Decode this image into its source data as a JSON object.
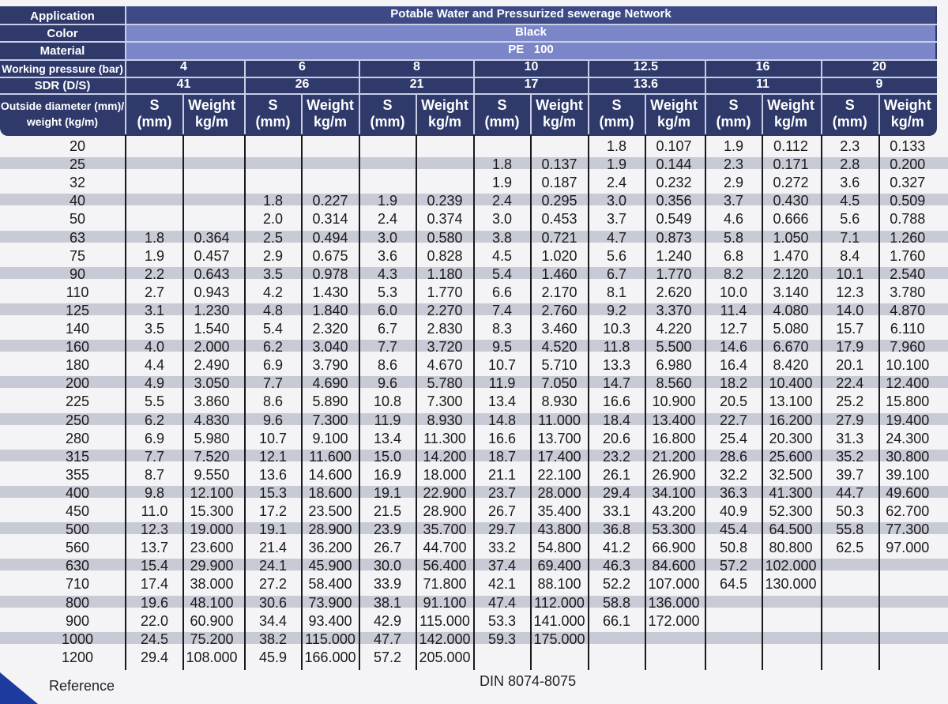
{
  "labels": {
    "application": "Application",
    "color": "Color",
    "material": "Material",
    "working_pressure": "Working pressure (bar)",
    "sdr": "SDR (D/S)",
    "od_line1": "Outside diameter (mm)/",
    "od_line2": "weight (kg/m)"
  },
  "header": {
    "application": "Potable Water and  Pressurized sewerage Network",
    "color": "Black",
    "material": "PE   100"
  },
  "sub_labels": {
    "s_top": "S",
    "s_bottom": "(mm)",
    "w_top": "Weight",
    "w_bottom": "kg/m"
  },
  "pressure_groups": [
    {
      "pressure": "4",
      "sdr": "41"
    },
    {
      "pressure": "6",
      "sdr": "26"
    },
    {
      "pressure": "8",
      "sdr": "21"
    },
    {
      "pressure": "10",
      "sdr": "17"
    },
    {
      "pressure": "12.5",
      "sdr": "13.6"
    },
    {
      "pressure": "16",
      "sdr": "11"
    },
    {
      "pressure": "20",
      "sdr": "9"
    }
  ],
  "rows": [
    {
      "od": "20",
      "v": [
        [
          "",
          ""
        ],
        [
          "",
          ""
        ],
        [
          "",
          ""
        ],
        [
          "",
          ""
        ],
        [
          "1.8",
          "0.107"
        ],
        [
          "1.9",
          "0.112"
        ],
        [
          "2.3",
          "0.133"
        ]
      ]
    },
    {
      "od": "25",
      "v": [
        [
          "",
          ""
        ],
        [
          "",
          ""
        ],
        [
          "",
          ""
        ],
        [
          "1.8",
          "0.137"
        ],
        [
          "1.9",
          "0.144"
        ],
        [
          "2.3",
          "0.171"
        ],
        [
          "2.8",
          "0.200"
        ]
      ]
    },
    {
      "od": "32",
      "v": [
        [
          "",
          ""
        ],
        [
          "",
          ""
        ],
        [
          "",
          ""
        ],
        [
          "1.9",
          "0.187"
        ],
        [
          "2.4",
          "0.232"
        ],
        [
          "2.9",
          "0.272"
        ],
        [
          "3.6",
          "0.327"
        ]
      ]
    },
    {
      "od": "40",
      "v": [
        [
          "",
          ""
        ],
        [
          "1.8",
          "0.227"
        ],
        [
          "1.9",
          "0.239"
        ],
        [
          "2.4",
          "0.295"
        ],
        [
          "3.0",
          "0.356"
        ],
        [
          "3.7",
          "0.430"
        ],
        [
          "4.5",
          "0.509"
        ]
      ]
    },
    {
      "od": "50",
      "v": [
        [
          "",
          ""
        ],
        [
          "2.0",
          "0.314"
        ],
        [
          "2.4",
          "0.374"
        ],
        [
          "3.0",
          "0.453"
        ],
        [
          "3.7",
          "0.549"
        ],
        [
          "4.6",
          "0.666"
        ],
        [
          "5.6",
          "0.788"
        ]
      ]
    },
    {
      "od": "63",
      "v": [
        [
          "1.8",
          "0.364"
        ],
        [
          "2.5",
          "0.494"
        ],
        [
          "3.0",
          "0.580"
        ],
        [
          "3.8",
          "0.721"
        ],
        [
          "4.7",
          "0.873"
        ],
        [
          "5.8",
          "1.050"
        ],
        [
          "7.1",
          "1.260"
        ]
      ]
    },
    {
      "od": "75",
      "v": [
        [
          "1.9",
          "0.457"
        ],
        [
          "2.9",
          "0.675"
        ],
        [
          "3.6",
          "0.828"
        ],
        [
          "4.5",
          "1.020"
        ],
        [
          "5.6",
          "1.240"
        ],
        [
          "6.8",
          "1.470"
        ],
        [
          "8.4",
          "1.760"
        ]
      ]
    },
    {
      "od": "90",
      "v": [
        [
          "2.2",
          "0.643"
        ],
        [
          "3.5",
          "0.978"
        ],
        [
          "4.3",
          "1.180"
        ],
        [
          "5.4",
          "1.460"
        ],
        [
          "6.7",
          "1.770"
        ],
        [
          "8.2",
          "2.120"
        ],
        [
          "10.1",
          "2.540"
        ]
      ]
    },
    {
      "od": "110",
      "v": [
        [
          "2.7",
          "0.943"
        ],
        [
          "4.2",
          "1.430"
        ],
        [
          "5.3",
          "1.770"
        ],
        [
          "6.6",
          "2.170"
        ],
        [
          "8.1",
          "2.620"
        ],
        [
          "10.0",
          "3.140"
        ],
        [
          "12.3",
          "3.780"
        ]
      ]
    },
    {
      "od": "125",
      "v": [
        [
          "3.1",
          "1.230"
        ],
        [
          "4.8",
          "1.840"
        ],
        [
          "6.0",
          "2.270"
        ],
        [
          "7.4",
          "2.760"
        ],
        [
          "9.2",
          "3.370"
        ],
        [
          "11.4",
          "4.080"
        ],
        [
          "14.0",
          "4.870"
        ]
      ]
    },
    {
      "od": "140",
      "v": [
        [
          "3.5",
          "1.540"
        ],
        [
          "5.4",
          "2.320"
        ],
        [
          "6.7",
          "2.830"
        ],
        [
          "8.3",
          "3.460"
        ],
        [
          "10.3",
          "4.220"
        ],
        [
          "12.7",
          "5.080"
        ],
        [
          "15.7",
          "6.110"
        ]
      ]
    },
    {
      "od": "160",
      "v": [
        [
          "4.0",
          "2.000"
        ],
        [
          "6.2",
          "3.040"
        ],
        [
          "7.7",
          "3.720"
        ],
        [
          "9.5",
          "4.520"
        ],
        [
          "11.8",
          "5.500"
        ],
        [
          "14.6",
          "6.670"
        ],
        [
          "17.9",
          "7.960"
        ]
      ]
    },
    {
      "od": "180",
      "v": [
        [
          "4.4",
          "2.490"
        ],
        [
          "6.9",
          "3.790"
        ],
        [
          "8.6",
          "4.670"
        ],
        [
          "10.7",
          "5.710"
        ],
        [
          "13.3",
          "6.980"
        ],
        [
          "16.4",
          "8.420"
        ],
        [
          "20.1",
          "10.100"
        ]
      ]
    },
    {
      "od": "200",
      "v": [
        [
          "4.9",
          "3.050"
        ],
        [
          "7.7",
          "4.690"
        ],
        [
          "9.6",
          "5.780"
        ],
        [
          "11.9",
          "7.050"
        ],
        [
          "14.7",
          "8.560"
        ],
        [
          "18.2",
          "10.400"
        ],
        [
          "22.4",
          "12.400"
        ]
      ]
    },
    {
      "od": "225",
      "v": [
        [
          "5.5",
          "3.860"
        ],
        [
          "8.6",
          "5.890"
        ],
        [
          "10.8",
          "7.300"
        ],
        [
          "13.4",
          "8.930"
        ],
        [
          "16.6",
          "10.900"
        ],
        [
          "20.5",
          "13.100"
        ],
        [
          "25.2",
          "15.800"
        ]
      ]
    },
    {
      "od": "250",
      "v": [
        [
          "6.2",
          "4.830"
        ],
        [
          "9.6",
          "7.300"
        ],
        [
          "11.9",
          "8.930"
        ],
        [
          "14.8",
          "11.000"
        ],
        [
          "18.4",
          "13.400"
        ],
        [
          "22.7",
          "16.200"
        ],
        [
          "27.9",
          "19.400"
        ]
      ]
    },
    {
      "od": "280",
      "v": [
        [
          "6.9",
          "5.980"
        ],
        [
          "10.7",
          "9.100"
        ],
        [
          "13.4",
          "11.300"
        ],
        [
          "16.6",
          "13.700"
        ],
        [
          "20.6",
          "16.800"
        ],
        [
          "25.4",
          "20.300"
        ],
        [
          "31.3",
          "24.300"
        ]
      ]
    },
    {
      "od": "315",
      "v": [
        [
          "7.7",
          "7.520"
        ],
        [
          "12.1",
          "11.600"
        ],
        [
          "15.0",
          "14.200"
        ],
        [
          "18.7",
          "17.400"
        ],
        [
          "23.2",
          "21.200"
        ],
        [
          "28.6",
          "25.600"
        ],
        [
          "35.2",
          "30.800"
        ]
      ]
    },
    {
      "od": "355",
      "v": [
        [
          "8.7",
          "9.550"
        ],
        [
          "13.6",
          "14.600"
        ],
        [
          "16.9",
          "18.000"
        ],
        [
          "21.1",
          "22.100"
        ],
        [
          "26.1",
          "26.900"
        ],
        [
          "32.2",
          "32.500"
        ],
        [
          "39.7",
          "39.100"
        ]
      ]
    },
    {
      "od": "400",
      "v": [
        [
          "9.8",
          "12.100"
        ],
        [
          "15.3",
          "18.600"
        ],
        [
          "19.1",
          "22.900"
        ],
        [
          "23.7",
          "28.000"
        ],
        [
          "29.4",
          "34.100"
        ],
        [
          "36.3",
          "41.300"
        ],
        [
          "44.7",
          "49.600"
        ]
      ]
    },
    {
      "od": "450",
      "v": [
        [
          "11.0",
          "15.300"
        ],
        [
          "17.2",
          "23.500"
        ],
        [
          "21.5",
          "28.900"
        ],
        [
          "26.7",
          "35.400"
        ],
        [
          "33.1",
          "43.200"
        ],
        [
          "40.9",
          "52.300"
        ],
        [
          "50.3",
          "62.700"
        ]
      ]
    },
    {
      "od": "500",
      "v": [
        [
          "12.3",
          "19.000"
        ],
        [
          "19.1",
          "28.900"
        ],
        [
          "23.9",
          "35.700"
        ],
        [
          "29.7",
          "43.800"
        ],
        [
          "36.8",
          "53.300"
        ],
        [
          "45.4",
          "64.500"
        ],
        [
          "55.8",
          "77.300"
        ]
      ]
    },
    {
      "od": "560",
      "v": [
        [
          "13.7",
          "23.600"
        ],
        [
          "21.4",
          "36.200"
        ],
        [
          "26.7",
          "44.700"
        ],
        [
          "33.2",
          "54.800"
        ],
        [
          "41.2",
          "66.900"
        ],
        [
          "50.8",
          "80.800"
        ],
        [
          "62.5",
          "97.000"
        ]
      ]
    },
    {
      "od": "630",
      "v": [
        [
          "15.4",
          "29.900"
        ],
        [
          "24.1",
          "45.900"
        ],
        [
          "30.0",
          "56.400"
        ],
        [
          "37.4",
          "69.400"
        ],
        [
          "46.3",
          "84.600"
        ],
        [
          "57.2",
          "102.000"
        ],
        [
          "",
          ""
        ]
      ]
    },
    {
      "od": "710",
      "v": [
        [
          "17.4",
          "38.000"
        ],
        [
          "27.2",
          "58.400"
        ],
        [
          "33.9",
          "71.800"
        ],
        [
          "42.1",
          "88.100"
        ],
        [
          "52.2",
          "107.000"
        ],
        [
          "64.5",
          "130.000"
        ],
        [
          "",
          ""
        ]
      ]
    },
    {
      "od": "800",
      "v": [
        [
          "19.6",
          "48.100"
        ],
        [
          "30.6",
          "73.900"
        ],
        [
          "38.1",
          "91.100"
        ],
        [
          "47.4",
          "112.000"
        ],
        [
          "58.8",
          "136.000"
        ],
        [
          "",
          ""
        ],
        [
          "",
          ""
        ]
      ]
    },
    {
      "od": "900",
      "v": [
        [
          "22.0",
          "60.900"
        ],
        [
          "34.4",
          "93.400"
        ],
        [
          "42.9",
          "115.000"
        ],
        [
          "53.3",
          "141.000"
        ],
        [
          "66.1",
          "172.000"
        ],
        [
          "",
          ""
        ],
        [
          "",
          ""
        ]
      ]
    },
    {
      "od": "1000",
      "v": [
        [
          "24.5",
          "75.200"
        ],
        [
          "38.2",
          "115.000"
        ],
        [
          "47.7",
          "142.000"
        ],
        [
          "59.3",
          "175.000"
        ],
        [
          "",
          ""
        ],
        [
          "",
          ""
        ],
        [
          "",
          ""
        ]
      ]
    },
    {
      "od": "1200",
      "v": [
        [
          "29.4",
          "108.000"
        ],
        [
          "45.9",
          "166.000"
        ],
        [
          "57.2",
          "205.000"
        ],
        [
          "",
          ""
        ],
        [
          "",
          ""
        ],
        [
          "",
          ""
        ],
        [
          "",
          ""
        ]
      ]
    }
  ],
  "footer": {
    "reference": "Reference",
    "standard": "DIN 8074-8075"
  },
  "colors": {
    "header_dark": "#2f3a6b",
    "header_light": "#7b86c9",
    "stripe": "#c8cbd6",
    "corner": "#1d3a9e"
  }
}
